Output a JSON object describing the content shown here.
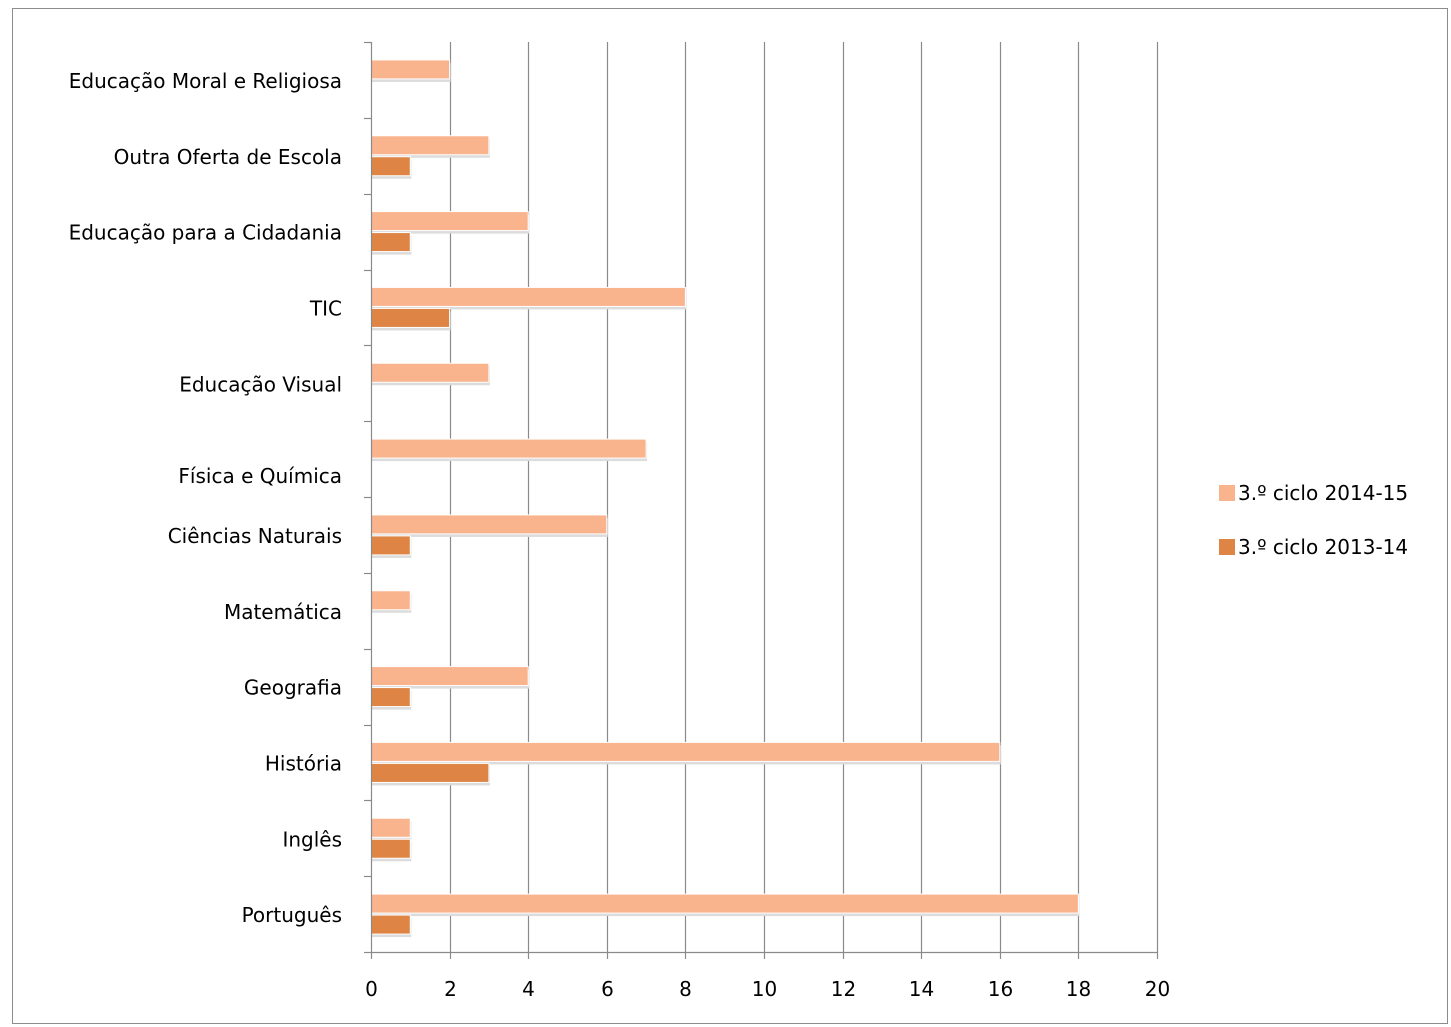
{
  "chart_data": {
    "type": "bar",
    "orientation": "horizontal",
    "title": "",
    "xlabel": "",
    "ylabel": "",
    "xlim": [
      0,
      20
    ],
    "x_ticks": [
      0,
      2,
      4,
      6,
      8,
      10,
      12,
      14,
      16,
      18,
      20
    ],
    "grid": "vertical",
    "legend_position": "right",
    "categories": [
      "Educação Moral e Religiosa",
      "Outra Oferta de Escola",
      "Educação para a Cidadania",
      "TIC",
      "Educação Visual",
      "Física e Química",
      "Ciências Naturais",
      "Matemática",
      "Geografia",
      "História",
      "Inglês",
      "Português"
    ],
    "series": [
      {
        "name": "3.º ciclo 2014-15",
        "color": "#F9B48E",
        "values": [
          2,
          3,
          4,
          8,
          3,
          7,
          6,
          1,
          4,
          16,
          1,
          18
        ]
      },
      {
        "name": "3.º ciclo 2013-14",
        "color": "#DE8545",
        "values": [
          0,
          1,
          1,
          2,
          0,
          0,
          1,
          0,
          1,
          3,
          1,
          1
        ]
      }
    ]
  }
}
